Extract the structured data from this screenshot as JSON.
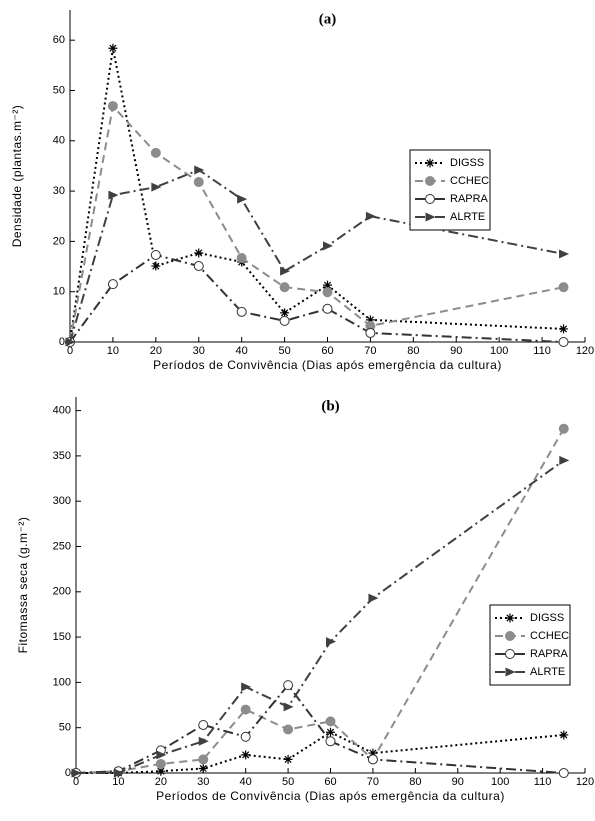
{
  "chart_data": [
    {
      "type": "line",
      "title": "(a)",
      "x_label": "Períodos de Convivência (Dias após emergência da cultura)",
      "y_label": "Densidade (plantas.m⁻²)",
      "x": [
        0,
        10,
        20,
        30,
        40,
        50,
        60,
        70,
        115
      ],
      "series": [
        {
          "name": "DIGSS",
          "color": "#000000",
          "line_style": "dotted",
          "marker": "star",
          "values": [
            0,
            58.4,
            15.1,
            17.7,
            15.9,
            5.8,
            11.3,
            4.4,
            2.6
          ]
        },
        {
          "name": "CCHEC",
          "color": "#8c8c8c",
          "line_style": "dashed",
          "marker": "circle-filled",
          "values": [
            0,
            46.9,
            37.6,
            31.8,
            16.7,
            10.9,
            9.9,
            3.2,
            10.9
          ]
        },
        {
          "name": "RAPRA",
          "color": "#333333",
          "line_style": "dashdot",
          "marker": "circle-open",
          "values": [
            0,
            11.5,
            17.3,
            15.1,
            6.0,
            4.2,
            6.6,
            1.8,
            0
          ]
        },
        {
          "name": "ALRTE",
          "color": "#404040",
          "line_style": "dashdot",
          "marker": "triangle-right",
          "values": [
            0,
            29.2,
            30.8,
            34.2,
            28.4,
            14.1,
            19.1,
            25.0,
            17.5
          ]
        }
      ],
      "xlim": [
        0,
        120
      ],
      "xticks": [
        0,
        10,
        20,
        30,
        40,
        50,
        60,
        70,
        80,
        90,
        100,
        110,
        120
      ],
      "ylim": [
        0,
        66
      ],
      "yticks": [
        0,
        10,
        20,
        30,
        40,
        50,
        60
      ],
      "legend": "upper right"
    },
    {
      "type": "line",
      "title": "(b)",
      "x_label": "Períodos de Convivência (Dias após emergência da cultura)",
      "y_label": "Fitomassa seca (g.m⁻²)",
      "x": [
        0,
        10,
        20,
        30,
        40,
        50,
        60,
        70,
        115
      ],
      "series": [
        {
          "name": "DIGSS",
          "color": "#000000",
          "line_style": "dotted",
          "marker": "star",
          "values": [
            0,
            0,
            2,
            5,
            20,
            15,
            45,
            22,
            42
          ]
        },
        {
          "name": "CCHEC",
          "color": "#8c8c8c",
          "line_style": "dashed",
          "marker": "circle-filled",
          "values": [
            0,
            2,
            10,
            15,
            70,
            48,
            57,
            15,
            380
          ]
        },
        {
          "name": "RAPRA",
          "color": "#333333",
          "line_style": "dashdot",
          "marker": "circle-open",
          "values": [
            0,
            2,
            25,
            53,
            40,
            97,
            35,
            15,
            0
          ]
        },
        {
          "name": "ALRTE",
          "color": "#404040",
          "line_style": "dashdot",
          "marker": "triangle-right",
          "values": [
            0,
            0,
            20,
            35,
            95,
            73,
            145,
            193,
            345
          ]
        }
      ],
      "xlim": [
        0,
        120
      ],
      "xticks": [
        0,
        10,
        20,
        30,
        40,
        50,
        60,
        70,
        80,
        90,
        100,
        110,
        120
      ],
      "ylim": [
        0,
        415
      ],
      "yticks": [
        0,
        50,
        100,
        150,
        200,
        250,
        300,
        350,
        400
      ],
      "legend": "center right"
    }
  ]
}
